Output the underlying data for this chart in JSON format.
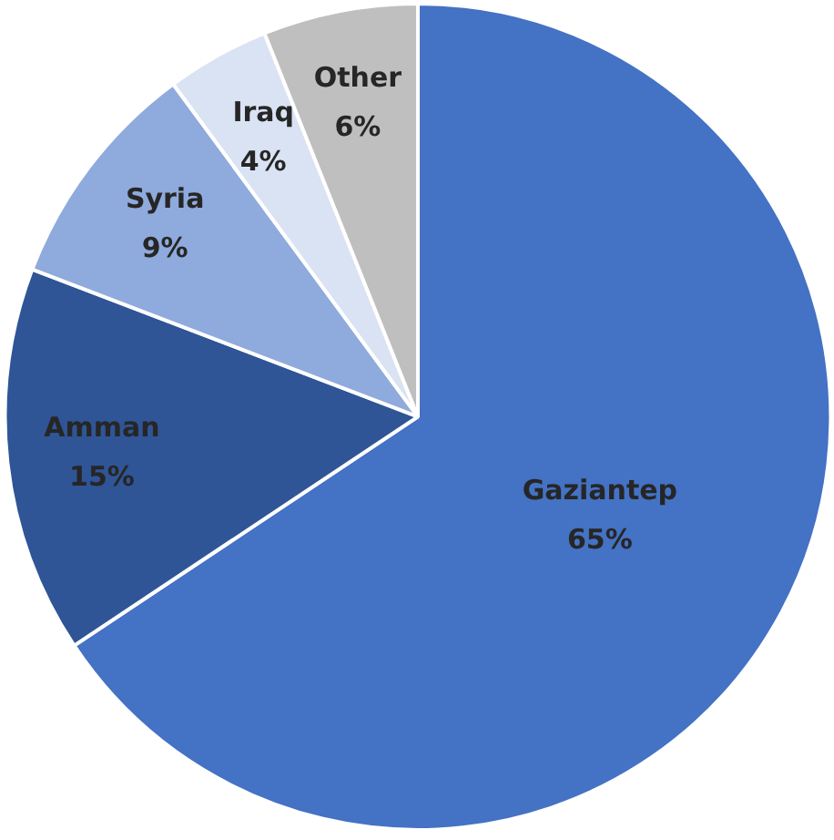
{
  "chart_data": {
    "type": "pie",
    "categories": [
      "Gaziantep",
      "Amman",
      "Syria",
      "Iraq",
      "Other"
    ],
    "values": [
      65,
      15,
      9,
      4,
      6
    ],
    "value_labels": [
      "65%",
      "15%",
      "9%",
      "4%",
      "6%"
    ],
    "colors": [
      "#4472c4",
      "#2f5597",
      "#8faadc",
      "#dae3f3",
      "#bfbfbf"
    ]
  }
}
